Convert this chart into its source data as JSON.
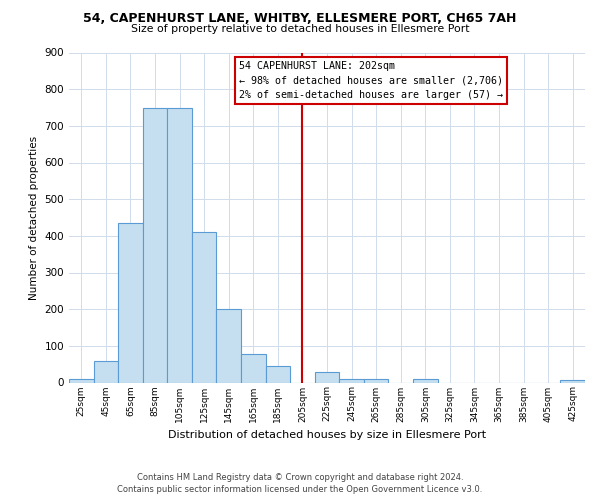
{
  "title": "54, CAPENHURST LANE, WHITBY, ELLESMERE PORT, CH65 7AH",
  "subtitle": "Size of property relative to detached houses in Ellesmere Port",
  "xlabel": "Distribution of detached houses by size in Ellesmere Port",
  "ylabel": "Number of detached properties",
  "bar_color": "#c5dff0",
  "bar_edge_color": "#5b9bd5",
  "background_color": "#ffffff",
  "grid_color": "#d0dcea",
  "bin_edges": [
    15,
    35,
    55,
    75,
    95,
    115,
    135,
    155,
    175,
    195,
    215,
    235,
    255,
    275,
    295,
    315,
    335,
    355,
    375,
    395,
    415,
    435
  ],
  "bin_labels": [
    "25sqm",
    "45sqm",
    "65sqm",
    "85sqm",
    "105sqm",
    "125sqm",
    "145sqm",
    "165sqm",
    "185sqm",
    "205sqm",
    "225sqm",
    "245sqm",
    "265sqm",
    "285sqm",
    "305sqm",
    "325sqm",
    "345sqm",
    "365sqm",
    "385sqm",
    "405sqm",
    "425sqm"
  ],
  "bar_heights": [
    10,
    60,
    435,
    750,
    750,
    410,
    200,
    78,
    45,
    0,
    30,
    10,
    10,
    0,
    10,
    0,
    0,
    0,
    0,
    0,
    8
  ],
  "vline_x": 205,
  "vline_color": "#cc0000",
  "annotation_title": "54 CAPENHURST LANE: 202sqm",
  "annotation_line1": "← 98% of detached houses are smaller (2,706)",
  "annotation_line2": "2% of semi-detached houses are larger (57) →",
  "annotation_box_color": "#cc0000",
  "ylim": [
    0,
    900
  ],
  "yticks": [
    0,
    100,
    200,
    300,
    400,
    500,
    600,
    700,
    800,
    900
  ],
  "footer_line1": "Contains HM Land Registry data © Crown copyright and database right 2024.",
  "footer_line2": "Contains public sector information licensed under the Open Government Licence v3.0."
}
